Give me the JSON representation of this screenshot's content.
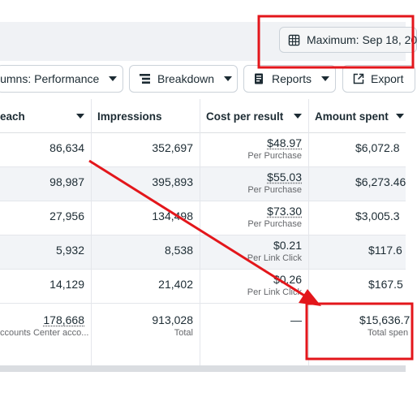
{
  "header": {
    "date_range_label": "Maximum: Sep 18, 20"
  },
  "toolbar": {
    "columns_label": "lumns: Performance",
    "breakdown_label": "Breakdown",
    "reports_label": "Reports",
    "export_label": "Export"
  },
  "table": {
    "headers": {
      "reach": "each",
      "impressions": "Impressions",
      "cost_per_result": "Cost per result",
      "amount_spent": "Amount spent"
    },
    "rows": [
      {
        "reach": "86,634",
        "impressions": "352,697",
        "cost": "$48.97",
        "cost_sub": "Per Purchase",
        "spent": "$6,072.8"
      },
      {
        "reach": "98,987",
        "impressions": "395,893",
        "cost": "$55.03",
        "cost_sub": "Per Purchase",
        "spent": "$6,273.46"
      },
      {
        "reach": "27,956",
        "impressions": "134,498",
        "cost": "$73.30",
        "cost_sub": "Per Purchase",
        "spent": "$3,005.3"
      },
      {
        "reach": "5,932",
        "impressions": "8,538",
        "cost": "$0.21",
        "cost_sub": "Per Link Click",
        "spent": "$117.6"
      },
      {
        "reach": "14,129",
        "impressions": "21,402",
        "cost": "$0.26",
        "cost_sub": "Per Link Click",
        "spent": "$167.5"
      }
    ],
    "totals": {
      "reach": "178,668",
      "reach_sub": "ccounts Center acco...",
      "impressions": "913,028",
      "impressions_sub": "Total",
      "cost": "—",
      "spent": "$15,636.7",
      "spent_sub": "Total spen"
    }
  },
  "annotations": {
    "highlight_color": "#e3161b"
  }
}
